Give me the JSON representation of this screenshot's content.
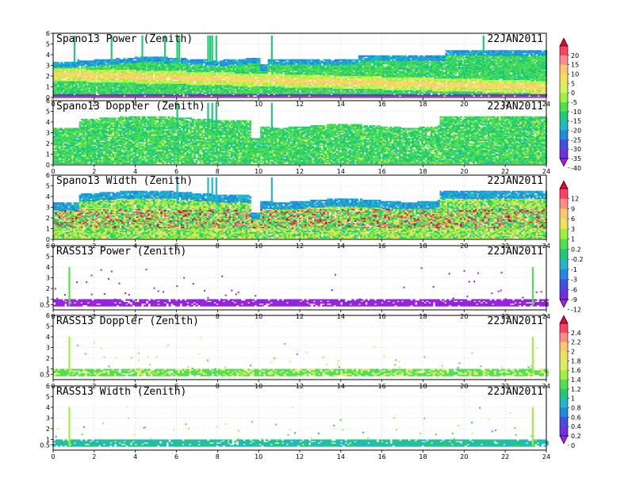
{
  "date_label": "22JAN2011",
  "chart_data": [
    {
      "type": "heatmap",
      "title": "Spano13 Power (Zenith)",
      "date": "22JAN2011",
      "xlim": [
        0,
        24
      ],
      "x_ticks": [
        "0",
        "2",
        "4",
        "6",
        "8",
        "10",
        "12",
        "14",
        "16",
        "18",
        "20",
        "22",
        "24"
      ],
      "ylim": [
        0,
        6
      ],
      "y_ticks": [
        "0",
        "1",
        "2",
        "3",
        "4",
        "5",
        "6"
      ],
      "grid": true,
      "colorbar": "power",
      "profile": "spano_power",
      "spikes_hours": [
        1.0,
        2.8,
        4.3,
        5.4,
        6.0,
        6.1,
        7.5,
        7.6,
        7.7,
        7.9,
        10.6,
        20.9
      ]
    },
    {
      "type": "heatmap",
      "title": "Spano13 Doppler (Zenith)",
      "date": "22JAN2011",
      "xlim": [
        0,
        24
      ],
      "x_ticks": [
        "0",
        "2",
        "4",
        "6",
        "8",
        "10",
        "12",
        "14",
        "16",
        "18",
        "20",
        "22",
        "24"
      ],
      "ylim": [
        0,
        6
      ],
      "y_ticks": [
        "0",
        "1",
        "2",
        "3",
        "4",
        "5",
        "6"
      ],
      "grid": true,
      "colorbar": "power",
      "profile": "spano_doppler",
      "spikes_hours": [
        6.0,
        7.5,
        7.7,
        7.9,
        10.6
      ]
    },
    {
      "type": "heatmap",
      "title": "Spano13 Width (Zenith)",
      "date": "22JAN2011",
      "xlim": [
        0,
        24
      ],
      "x_ticks": [
        "0",
        "2",
        "4",
        "6",
        "8",
        "10",
        "12",
        "14",
        "16",
        "18",
        "20",
        "22",
        "24"
      ],
      "ylim": [
        0,
        6
      ],
      "y_ticks": [
        "0",
        "1",
        "2",
        "3",
        "4",
        "5",
        "6"
      ],
      "grid": true,
      "colorbar": "width",
      "profile": "spano_width",
      "spikes_hours": [
        6.0,
        7.5,
        7.7,
        7.9,
        10.6
      ]
    },
    {
      "type": "heatmap",
      "title": "RASS13 Power (Zenith)",
      "date": "22JAN2011",
      "xlim": [
        0,
        24
      ],
      "x_ticks": [
        "0",
        "2",
        "4",
        "6",
        "8",
        "10",
        "12",
        "14",
        "16",
        "18",
        "20",
        "22",
        "24"
      ],
      "ylim": [
        0,
        6
      ],
      "y_ticks": [
        "0.5",
        "1",
        "2",
        "3",
        "4",
        "5",
        "6"
      ],
      "grid": true,
      "colorbar": "width",
      "profile": "rass_power",
      "spikes_hours": [
        0.75,
        23.3
      ]
    },
    {
      "type": "heatmap",
      "title": "RASS13 Doppler (Zenith)",
      "date": "22JAN2011",
      "xlim": [
        0,
        24
      ],
      "x_ticks": [
        "0",
        "2",
        "4",
        "6",
        "8",
        "10",
        "12",
        "14",
        "16",
        "18",
        "20",
        "22",
        "24"
      ],
      "ylim": [
        0,
        6
      ],
      "y_ticks": [
        "0.5",
        "1",
        "2",
        "3",
        "4",
        "5",
        "6"
      ],
      "grid": true,
      "colorbar": "rass",
      "profile": "rass_doppler",
      "spikes_hours": [
        0.75,
        23.3
      ]
    },
    {
      "type": "heatmap",
      "title": "RASS13 Width (Zenith)",
      "date": "22JAN2011",
      "xlim": [
        0,
        24
      ],
      "x_ticks": [
        "0",
        "2",
        "4",
        "6",
        "8",
        "10",
        "12",
        "14",
        "16",
        "18",
        "20",
        "22",
        "24"
      ],
      "ylim": [
        0,
        6
      ],
      "y_ticks": [
        "0.5",
        "1",
        "2",
        "3",
        "4",
        "5",
        "6"
      ],
      "grid": true,
      "colorbar": "rass",
      "profile": "rass_width",
      "spikes_hours": [
        0.75,
        23.3
      ]
    }
  ],
  "colorbars": {
    "power": {
      "labels": [
        "20",
        "15",
        "10",
        "5",
        "0",
        "-5",
        "-10",
        "-15",
        "-20",
        "-25",
        "-30",
        "-35",
        "-40"
      ],
      "colors": [
        "#e8003a",
        "#ff4060",
        "#ff8a8a",
        "#ffc870",
        "#f0e060",
        "#d8f060",
        "#a0f040",
        "#50e050",
        "#20c878",
        "#20b8c8",
        "#2088e0",
        "#4050e0",
        "#7030e0",
        "#a020e0"
      ]
    },
    "width": {
      "labels": [
        "12",
        "9",
        "6",
        "3",
        "1",
        "0.2",
        "-0.2",
        "-1",
        "-3",
        "-6",
        "-9",
        "-12"
      ],
      "colors": [
        "#e8003a",
        "#ff4060",
        "#ff8a8a",
        "#ffc870",
        "#f0e060",
        "#a0f040",
        "#50e050",
        "#20c878",
        "#20b8c8",
        "#2088e0",
        "#4050e0",
        "#7030e0",
        "#a020e0"
      ]
    },
    "rass": {
      "labels": [
        "2.4",
        "2.2",
        "2",
        "1.8",
        "1.6",
        "1.4",
        "1.2",
        "1",
        "0.8",
        "0.6",
        "0.4",
        "0.2",
        "0"
      ],
      "colors": [
        "#e8003a",
        "#ff4060",
        "#ff8a8a",
        "#ffc870",
        "#f0e060",
        "#d8f060",
        "#a0f040",
        "#50e050",
        "#20c878",
        "#20b8c8",
        "#2088e0",
        "#4050e0",
        "#7030e0",
        "#a020e0"
      ]
    }
  }
}
